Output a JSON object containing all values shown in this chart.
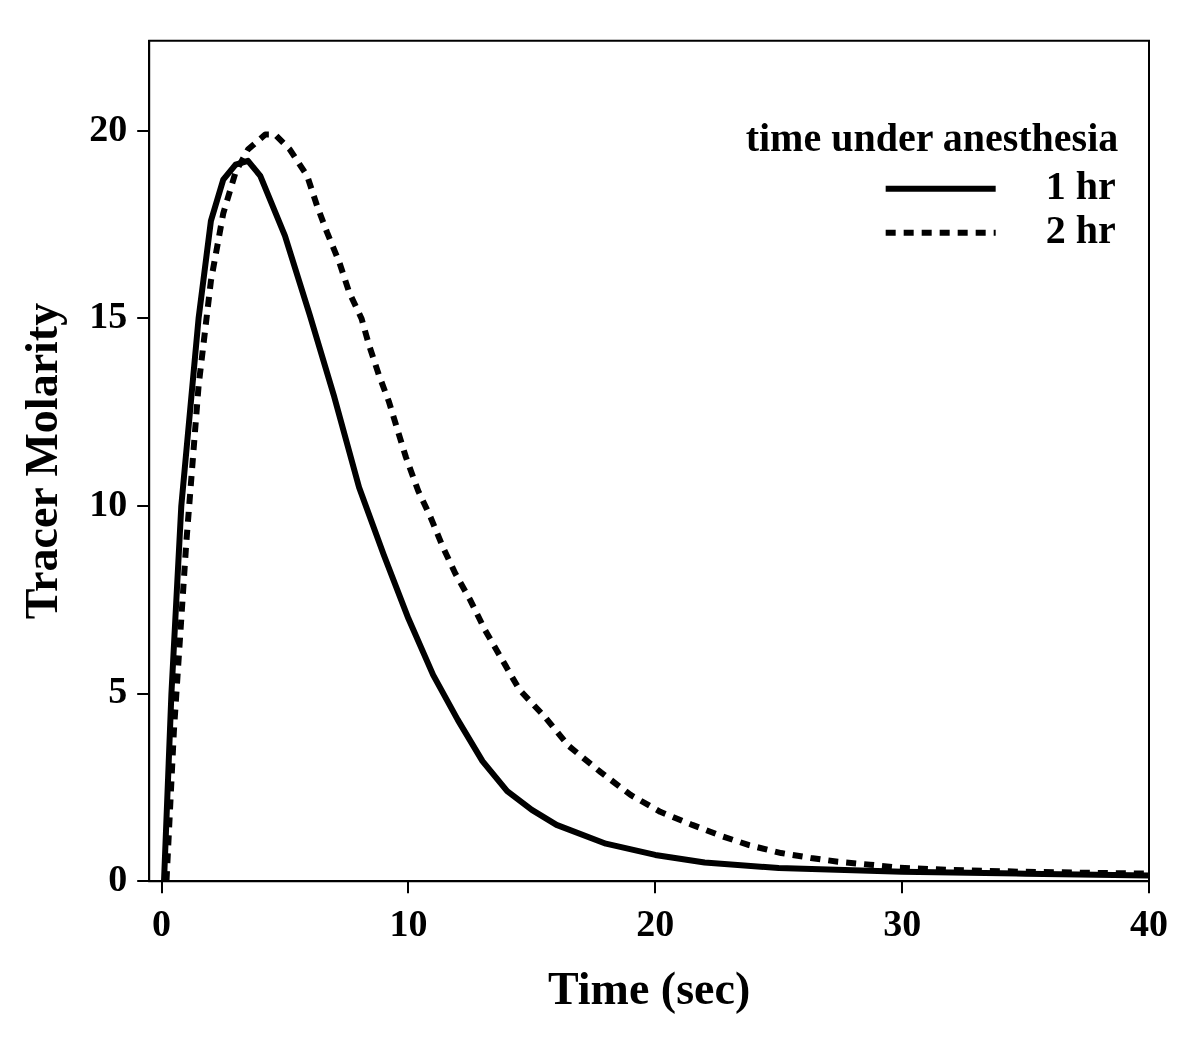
{
  "chart_data": {
    "type": "line",
    "xlabel": "Time (sec)",
    "ylabel": "Tracer Molarity",
    "legend_title": "time under anesthesia",
    "legend": "top right",
    "grid": false,
    "marker": "none",
    "xlim": [
      -0.5,
      40
    ],
    "xticks": [
      0,
      10,
      20,
      30,
      40
    ],
    "ylim": [
      0,
      22.4
    ],
    "yticks": [
      0,
      5,
      10,
      15,
      20
    ],
    "series": [
      {
        "name": "1 hr",
        "color": "#000000",
        "line_style": "solid",
        "x": [
          0.1,
          0.4,
          0.8,
          1.5,
          2,
          2.5,
          3,
          3.5,
          4,
          5,
          6,
          7,
          8,
          9,
          10,
          11,
          12,
          13,
          14,
          15,
          16,
          18,
          20,
          22,
          25,
          30,
          35,
          40
        ],
        "values": [
          0,
          5,
          10,
          15,
          17.6,
          18.7,
          19.1,
          19.2,
          18.8,
          17.2,
          15.1,
          12.9,
          10.5,
          8.7,
          7,
          5.5,
          4.3,
          3.2,
          2.4,
          1.9,
          1.5,
          1,
          0.7,
          0.5,
          0.35,
          0.25,
          0.2,
          0.15
        ]
      },
      {
        "name": "2 hr",
        "color": "#000000",
        "line_style": "dashed",
        "x": [
          0.2,
          0.5,
          1,
          1.5,
          2,
          2.5,
          3,
          3.5,
          4.2,
          4.6,
          5.2,
          5.9,
          6.3,
          6.7,
          7.2,
          7.6,
          8.1,
          8.4,
          8.8,
          9.2,
          9.9,
          10.4,
          10.9,
          11.4,
          11.9,
          12.5,
          13.1,
          13.8,
          14.5,
          15.5,
          16.5,
          17.8,
          19,
          20.2,
          21.5,
          22.7,
          23.8,
          25.1,
          26.3,
          27.4,
          28.7,
          29.9,
          32,
          35,
          40
        ],
        "values": [
          0,
          4,
          9,
          13.2,
          16,
          17.8,
          18.9,
          19.5,
          19.9,
          19.9,
          19.5,
          18.8,
          18,
          17.3,
          16.5,
          15.7,
          15,
          14.3,
          13.5,
          12.8,
          11.3,
          10.4,
          9.7,
          8.9,
          8.2,
          7.5,
          6.7,
          5.9,
          5.1,
          4.4,
          3.6,
          2.9,
          2.3,
          1.85,
          1.5,
          1.2,
          0.96,
          0.75,
          0.62,
          0.52,
          0.44,
          0.36,
          0.3,
          0.25,
          0.2
        ]
      }
    ]
  }
}
